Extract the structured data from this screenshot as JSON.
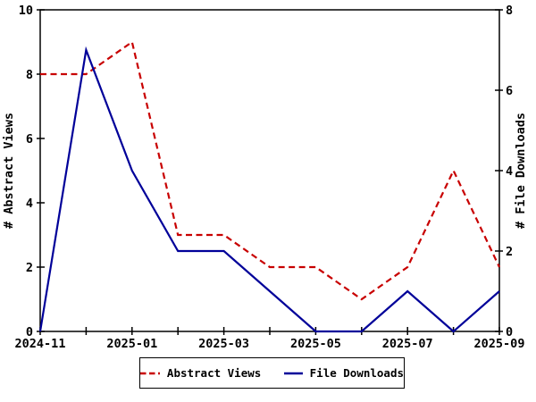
{
  "chart_data": {
    "type": "line",
    "x": [
      "2024-11",
      "2024-12",
      "2025-01",
      "2025-02",
      "2025-03",
      "2025-04",
      "2025-05",
      "2025-06",
      "2025-07",
      "2025-08",
      "2025-09"
    ],
    "series": [
      {
        "name": "Abstract Views",
        "axis": "left",
        "style": "dashed",
        "color": "#c80000",
        "values": [
          8,
          8,
          9,
          3,
          3,
          2,
          2,
          1,
          2,
          5,
          2
        ]
      },
      {
        "name": "File Downloads",
        "axis": "right",
        "style": "solid",
        "color": "#000099",
        "values": [
          0,
          7,
          4,
          2,
          2,
          1,
          0,
          0,
          1,
          0,
          1
        ]
      }
    ],
    "left_axis": {
      "label": "# Abstract Views",
      "min": 0,
      "max": 10,
      "ticks": [
        0,
        2,
        4,
        6,
        8,
        10
      ]
    },
    "right_axis": {
      "label": "# File Downloads",
      "min": 0,
      "max": 8,
      "ticks": [
        0,
        2,
        4,
        6,
        8
      ]
    },
    "x_axis": {
      "labeled_ticks": [
        "2024-11",
        "2025-01",
        "2025-03",
        "2025-05",
        "2025-07",
        "2025-09"
      ],
      "minor_tick_every_month": true
    },
    "legend_position": "bottom-center",
    "frame_color": "#000000",
    "background_color": "#ffffff"
  },
  "axes": {
    "left_label": "# Abstract Views",
    "right_label": "# File Downloads"
  },
  "legend": {
    "abstract_views_label": "Abstract Views",
    "file_downloads_label": "File Downloads"
  }
}
